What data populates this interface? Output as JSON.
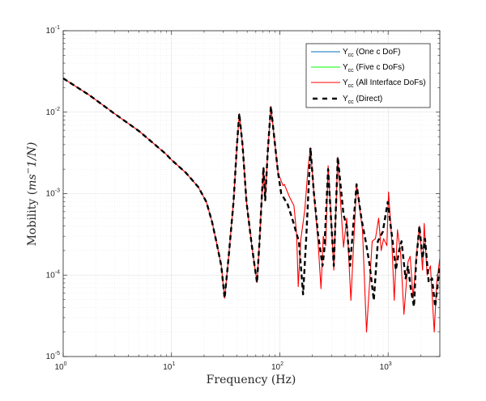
{
  "chart_data": {
    "type": "line",
    "title": "",
    "xlabel": "Frequency (Hz)",
    "ylabel": {
      "prefix": "Mobility (",
      "var": "ms",
      "sup": "−",
      "suffix": "1/N)"
    },
    "xscale": "log",
    "yscale": "log",
    "xlim": [
      1,
      3000
    ],
    "ylim": [
      1e-05,
      0.1
    ],
    "grid": true,
    "legend_position": "top-right",
    "x_ticks": [
      {
        "value": 1,
        "base": "10",
        "exp": "0"
      },
      {
        "value": 10,
        "base": "10",
        "exp": "1"
      },
      {
        "value": 100,
        "base": "10",
        "exp": "2"
      },
      {
        "value": 1000,
        "base": "10",
        "exp": "3"
      }
    ],
    "y_ticks": [
      {
        "value": 0.1,
        "base": "10",
        "exp": "-1"
      },
      {
        "value": 0.01,
        "base": "10",
        "exp": "-2"
      },
      {
        "value": 0.001,
        "base": "10",
        "exp": "-3"
      },
      {
        "value": 0.0001,
        "base": "10",
        "exp": "-4"
      },
      {
        "value": 1e-05,
        "base": "10",
        "exp": "-5"
      }
    ],
    "colors": {
      "one": "#0072BD",
      "five": "#00FF00",
      "all": "#FF0000",
      "direct": "#000000",
      "grid": "#e6e6e6",
      "axis": "#262626"
    },
    "series": [
      {
        "key": "one",
        "name": "Y",
        "sub": "cc",
        "label": " (One c DoF)",
        "style": "solid",
        "points": []
      },
      {
        "key": "five",
        "name": "Y",
        "sub": "cc",
        "label": " (Five c DoFs)",
        "style": "solid",
        "points": []
      },
      {
        "key": "all",
        "name": "Y",
        "sub": "cc",
        "label": " (All Interface DoFs)",
        "style": "solid",
        "points": [
          [
            1.0,
            0.026
          ],
          [
            1.74,
            0.0162
          ],
          [
            2.91,
            0.0098
          ],
          [
            5.06,
            0.0058
          ],
          [
            8.8,
            0.0031
          ],
          [
            10.0,
            0.0026
          ],
          [
            13.6,
            0.0018
          ],
          [
            17.7,
            0.0012
          ],
          [
            21.0,
            0.00079
          ],
          [
            23.7,
            0.00045
          ],
          [
            25.9,
            0.00026
          ],
          [
            28.8,
            0.00013
          ],
          [
            30.9,
            5.2e-05
          ],
          [
            33.6,
            0.00016
          ],
          [
            37.4,
            0.00079
          ],
          [
            40.2,
            0.0039
          ],
          [
            42.2,
            0.0096
          ],
          [
            45.3,
            0.0039
          ],
          [
            49.2,
            0.00079
          ],
          [
            54.5,
            0.00026
          ],
          [
            58.5,
            0.00013
          ],
          [
            61.6,
            8.1e-05
          ],
          [
            64.9,
            0.00026
          ],
          [
            68.4,
            0.001
          ],
          [
            70.7,
            0.0021
          ],
          [
            73.3,
            0.00083
          ],
          [
            77.2,
            0.0031
          ],
          [
            82.6,
            0.0118
          ],
          [
            88.0,
            0.0055
          ],
          [
            96.4,
            0.0018
          ],
          [
            107,
            0.00125
          ],
          [
            110,
            0.0013
          ],
          [
            122,
            0.00093
          ],
          [
            135,
            0.00071
          ],
          [
            143,
            0.00032
          ],
          [
            148,
            7.2e-05
          ],
          [
            156,
            0.00027
          ],
          [
            170,
            0.00063
          ],
          [
            182,
            0.002
          ],
          [
            192,
            0.00365
          ],
          [
            206,
            0.00105
          ],
          [
            225,
            0.00026
          ],
          [
            240,
            6.8e-05
          ],
          [
            252,
            0.0003
          ],
          [
            265,
            0.00023
          ],
          [
            279,
            0.0022
          ],
          [
            300,
            0.0004
          ],
          [
            315,
            0.000115
          ],
          [
            343,
            0.0028
          ],
          [
            368,
            0.00063
          ],
          [
            387,
            0.00022
          ],
          [
            415,
            0.0005
          ],
          [
            453,
            4.9e-05
          ],
          [
            511,
            0.0013
          ],
          [
            579,
            0.00036
          ],
          [
            632,
            2e-05
          ],
          [
            712,
            0.00026
          ],
          [
            763,
            0.00028
          ],
          [
            818,
            0.0005
          ],
          [
            862,
            0.0002
          ],
          [
            908,
            0.00028
          ],
          [
            973,
            0.00023
          ],
          [
            1008,
            0.00105
          ],
          [
            1080,
            0.00026
          ],
          [
            1137,
            4.9e-05
          ],
          [
            1219,
            0.00036
          ],
          [
            1305,
            0.00018
          ],
          [
            1400,
            3.3e-05
          ],
          [
            1525,
            0.000145
          ],
          [
            1598,
            0.00017
          ],
          [
            1702,
            5.2e-05
          ],
          [
            1813,
            0.00016
          ],
          [
            1943,
            0.0004
          ],
          [
            2080,
            0.000115
          ],
          [
            2152,
            0.00043
          ],
          [
            2291,
            0.0001
          ],
          [
            2456,
            0.00013
          ],
          [
            2666,
            2e-05
          ],
          [
            2811,
            8.1e-05
          ],
          [
            3000,
            0.00016
          ]
        ]
      },
      {
        "key": "direct",
        "name": "Y",
        "sub": "cc",
        "label": " (Direct)",
        "style": "dashed",
        "points": [
          [
            1.0,
            0.026
          ],
          [
            1.74,
            0.0162
          ],
          [
            2.91,
            0.0098
          ],
          [
            5.06,
            0.0058
          ],
          [
            8.8,
            0.0031
          ],
          [
            10.0,
            0.0026
          ],
          [
            13.6,
            0.0018
          ],
          [
            17.7,
            0.0012
          ],
          [
            21.0,
            0.00079
          ],
          [
            23.7,
            0.00045
          ],
          [
            25.9,
            0.00026
          ],
          [
            28.8,
            0.00013
          ],
          [
            30.9,
            5.2e-05
          ],
          [
            33.6,
            0.00016
          ],
          [
            37.4,
            0.00079
          ],
          [
            40.2,
            0.0039
          ],
          [
            42.2,
            0.0096
          ],
          [
            45.3,
            0.0039
          ],
          [
            49.2,
            0.00079
          ],
          [
            54.5,
            0.00026
          ],
          [
            58.5,
            0.00013
          ],
          [
            61.6,
            8.1e-05
          ],
          [
            64.9,
            0.00026
          ],
          [
            68.4,
            0.001
          ],
          [
            70.7,
            0.0021
          ],
          [
            73.3,
            0.00083
          ],
          [
            77.2,
            0.0031
          ],
          [
            82.6,
            0.0118
          ],
          [
            88.0,
            0.0055
          ],
          [
            96.4,
            0.0018
          ],
          [
            103,
            0.001
          ],
          [
            118,
            0.00074
          ],
          [
            133,
            0.00045
          ],
          [
            143,
            0.00032
          ],
          [
            150,
            0.00026
          ],
          [
            164,
            5.8e-05
          ],
          [
            176,
            0.00032
          ],
          [
            192,
            0.00365
          ],
          [
            206,
            0.00105
          ],
          [
            225,
            0.00032
          ],
          [
            248,
            0.00013
          ],
          [
            257,
            0.0002
          ],
          [
            279,
            0.002
          ],
          [
            315,
            0.00013
          ],
          [
            343,
            0.0028
          ],
          [
            387,
            0.00055
          ],
          [
            415,
            0.0004
          ],
          [
            445,
            0.00013
          ],
          [
            511,
            0.0013
          ],
          [
            569,
            0.00048
          ],
          [
            621,
            0.00026
          ],
          [
            676,
            0.00013
          ],
          [
            737,
            4.9e-05
          ],
          [
            804,
            0.00026
          ],
          [
            892,
            0.00034
          ],
          [
            991,
            0.00079
          ],
          [
            1099,
            0.00026
          ],
          [
            1177,
            0.000115
          ],
          [
            1261,
            0.0002
          ],
          [
            1328,
            0.00026
          ],
          [
            1449,
            9.1e-05
          ],
          [
            1525,
            0.00013
          ],
          [
            1626,
            6.5e-05
          ],
          [
            1732,
            4.1e-05
          ],
          [
            1813,
            0.000145
          ],
          [
            1943,
            0.0004
          ],
          [
            2080,
            0.00016
          ],
          [
            2189,
            0.00028
          ],
          [
            2371,
            8.1e-05
          ],
          [
            2541,
            9.1e-05
          ],
          [
            2713,
            4.1e-05
          ],
          [
            3000,
            0.00013
          ]
        ]
      }
    ]
  }
}
